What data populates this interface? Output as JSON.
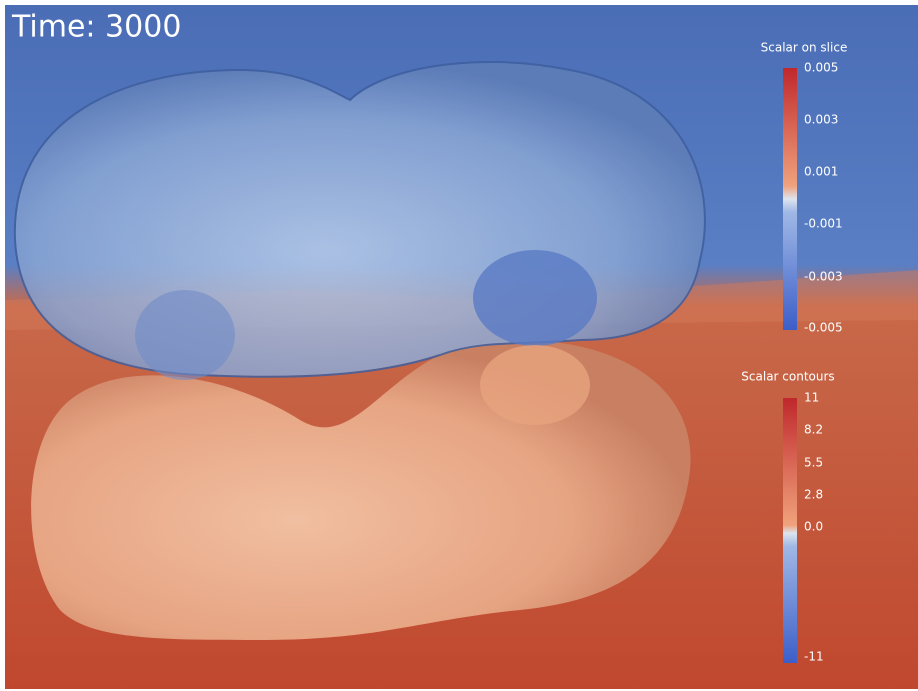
{
  "time_label": "Time: 3000",
  "colorbars": [
    {
      "title": "Scalar on slice",
      "ticks": [
        "0.005",
        "0.003",
        "0.001",
        "-0.001",
        "-0.003",
        "-0.005"
      ]
    },
    {
      "title": "Scalar contours",
      "ticks": [
        "11",
        "8.2",
        "5.5",
        "2.8",
        "0.0",
        "-11"
      ]
    }
  ]
}
